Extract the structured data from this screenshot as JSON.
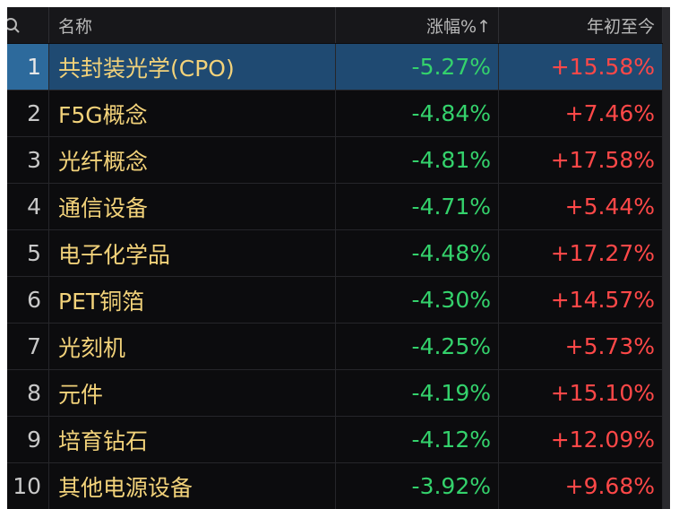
{
  "header": {
    "name": "名称",
    "change": "涨幅%↑",
    "ytd": "年初至今"
  },
  "table": {
    "rows": [
      [
        1,
        "共封装光学(CPO)",
        "-5.27%",
        "+15.58%"
      ],
      [
        2,
        "F5G概念",
        "-4.84%",
        "+7.46%"
      ],
      [
        3,
        "光纤概念",
        "-4.81%",
        "+17.58%"
      ],
      [
        4,
        "通信设备",
        "-4.71%",
        "+5.44%"
      ],
      [
        5,
        "电子化学品",
        "-4.48%",
        "+17.27%"
      ],
      [
        6,
        "PET铜箔",
        "-4.30%",
        "+14.57%"
      ],
      [
        7,
        "光刻机",
        "-4.25%",
        "+5.73%"
      ],
      [
        8,
        "元件",
        "-4.19%",
        "+15.10%"
      ],
      [
        9,
        "培育钻石",
        "-4.12%",
        "+12.09%"
      ],
      [
        10,
        "其他电源设备",
        "-3.92%",
        "+9.68%"
      ]
    ]
  }
}
